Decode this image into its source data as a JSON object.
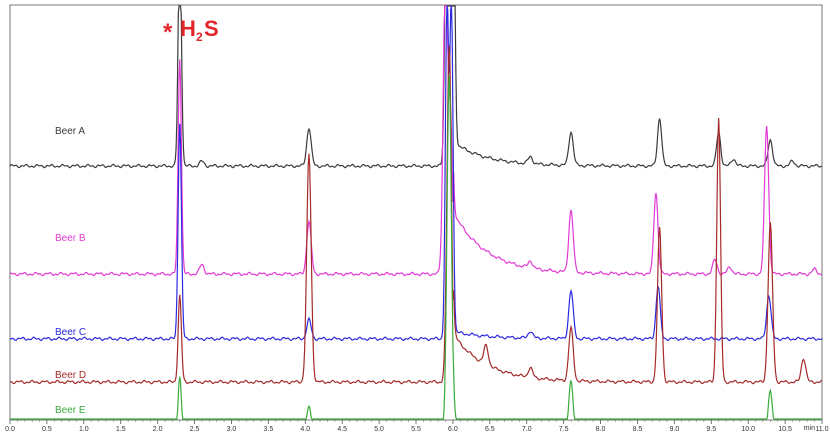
{
  "chart_data": {
    "type": "line",
    "title": "",
    "xlabel": "min",
    "ylabel": "",
    "xlim": [
      0.0,
      11.0
    ],
    "x_ticks": [
      "0.0",
      "0.5",
      "1.0",
      "1.5",
      "2.0",
      "2.5",
      "3.0",
      "3.5",
      "4.0",
      "4.5",
      "5.0",
      "5.5",
      "6.0",
      "6.5",
      "7.0",
      "7.5",
      "8.0",
      "8.5",
      "9.0",
      "9.5",
      "10.0",
      "10.5",
      "11.0"
    ],
    "annotation": {
      "star": "*",
      "text_main": "H",
      "text_sub": "2",
      "text_tail": "S",
      "x": 2.3
    },
    "series": [
      {
        "name": "Beer A",
        "color": "#3a3a3a",
        "baseline": 0.9,
        "peaks": [
          [
            2.3,
            0.96,
            0.022
          ],
          [
            2.6,
            0.02,
            0.03
          ],
          [
            4.05,
            0.16,
            0.03
          ],
          [
            5.92,
            1.5,
            0.025
          ],
          [
            6.0,
            1.6,
            0.022
          ],
          [
            7.05,
            0.03,
            0.03
          ],
          [
            7.6,
            0.14,
            0.03
          ],
          [
            8.8,
            0.2,
            0.028
          ],
          [
            9.6,
            0.14,
            0.028
          ],
          [
            9.8,
            0.03,
            0.03
          ],
          [
            10.3,
            0.11,
            0.03
          ],
          [
            10.6,
            0.02,
            0.03
          ]
        ],
        "tail_amp": 0.1
      },
      {
        "name": "Beer B",
        "color": "#e339d6",
        "baseline": 0.45,
        "peaks": [
          [
            2.3,
            0.9,
            0.022
          ],
          [
            2.6,
            0.04,
            0.03
          ],
          [
            4.05,
            0.22,
            0.03
          ],
          [
            5.9,
            1.3,
            0.03
          ],
          [
            5.97,
            0.6,
            0.025
          ],
          [
            7.05,
            0.03,
            0.03
          ],
          [
            7.6,
            0.26,
            0.03
          ],
          [
            8.75,
            0.34,
            0.028
          ],
          [
            9.55,
            0.06,
            0.03
          ],
          [
            9.75,
            0.03,
            0.03
          ],
          [
            10.25,
            0.62,
            0.028
          ],
          [
            10.9,
            0.02,
            0.03
          ]
        ],
        "tail_amp": 0.26
      },
      {
        "name": "Beer C",
        "color": "#2a2ae0",
        "baseline": 0.18,
        "peaks": [
          [
            2.3,
            0.9,
            0.022
          ],
          [
            4.05,
            0.08,
            0.03
          ],
          [
            5.92,
            1.4,
            0.022
          ],
          [
            5.98,
            1.4,
            0.022
          ],
          [
            7.05,
            0.03,
            0.03
          ],
          [
            7.6,
            0.2,
            0.03
          ],
          [
            8.78,
            0.22,
            0.028
          ],
          [
            10.28,
            0.18,
            0.03
          ]
        ],
        "tail_amp": 0.03
      },
      {
        "name": "Beer D",
        "color": "#a52a2a",
        "baseline": 0.0,
        "peaks": [
          [
            2.3,
            0.36,
            0.022
          ],
          [
            4.05,
            0.95,
            0.03
          ],
          [
            5.95,
            1.4,
            0.03
          ],
          [
            6.45,
            0.08,
            0.03
          ],
          [
            7.05,
            0.04,
            0.03
          ],
          [
            7.6,
            0.22,
            0.03
          ],
          [
            8.8,
            0.64,
            0.028
          ],
          [
            9.6,
            1.1,
            0.025
          ],
          [
            10.3,
            0.66,
            0.03
          ],
          [
            10.75,
            0.1,
            0.03
          ]
        ],
        "tail_amp": 0.2
      },
      {
        "name": "Beer E",
        "color": "#3aaa3a",
        "baseline": -0.22,
        "peaks": [
          [
            2.3,
            0.24,
            0.022
          ],
          [
            4.05,
            0.12,
            0.03
          ],
          [
            5.95,
            1.5,
            0.03
          ],
          [
            7.6,
            0.22,
            0.03
          ],
          [
            8.8,
            0.02,
            0.03
          ],
          [
            9.6,
            0.02,
            0.03
          ],
          [
            10.3,
            0.18,
            0.03
          ],
          [
            10.6,
            0.03,
            0.03
          ]
        ],
        "tail_amp": 0.06
      }
    ]
  }
}
